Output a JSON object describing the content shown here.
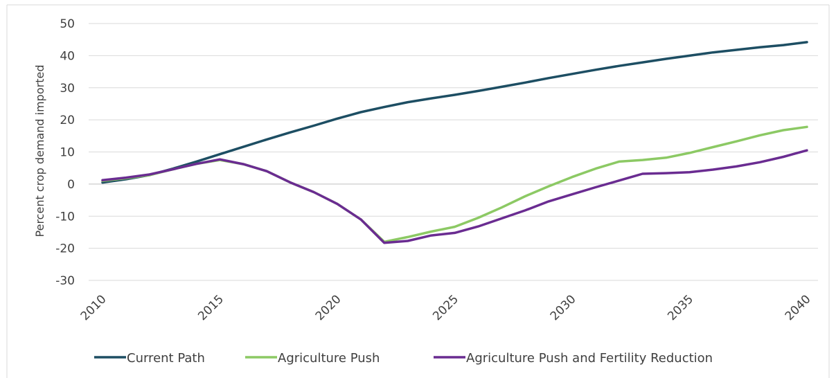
{
  "chart_data": {
    "type": "line",
    "title": "",
    "xlabel": "",
    "ylabel": "Percent crop demand imported",
    "xlim": [
      2010,
      2040
    ],
    "ylim": [
      -30,
      50
    ],
    "x_ticks": [
      "2010",
      "2015",
      "2020",
      "2025",
      "2030",
      "2035",
      "2040"
    ],
    "y_ticks": [
      "50",
      "40",
      "30",
      "20",
      "10",
      "0",
      "-10",
      "-20",
      "-30"
    ],
    "grid": true,
    "legend_position": "bottom",
    "x": [
      2010,
      2011,
      2012,
      2013,
      2014,
      2015,
      2016,
      2017,
      2018,
      2019,
      2020,
      2021,
      2022,
      2023,
      2024,
      2025,
      2026,
      2027,
      2028,
      2029,
      2030,
      2031,
      2032,
      2033,
      2034,
      2035,
      2036,
      2037,
      2038,
      2039,
      2040
    ],
    "series": [
      {
        "name": "Current Path",
        "color": "#1d4e63",
        "values": [
          0.5,
          1.5,
          2.8,
          4.8,
          7.0,
          9.3,
          11.6,
          13.9,
          16.1,
          18.2,
          20.4,
          22.4,
          24.0,
          25.5,
          26.7,
          27.8,
          29.0,
          30.3,
          31.6,
          33.0,
          34.3,
          35.6,
          36.8,
          37.9,
          39.0,
          40.0,
          41.0,
          41.8,
          42.6,
          43.3,
          44.2
        ]
      },
      {
        "name": "Agriculture Push",
        "color": "#8cc964",
        "values": [
          1.0,
          1.8,
          2.8,
          4.6,
          6.3,
          7.5,
          6.2,
          4.0,
          0.5,
          -2.5,
          -6.2,
          -11.0,
          -18.0,
          -16.5,
          -14.8,
          -13.3,
          -10.5,
          -7.3,
          -3.8,
          -0.7,
          2.2,
          4.8,
          7.0,
          7.5,
          8.2,
          9.7,
          11.5,
          13.3,
          15.2,
          16.8,
          17.8
        ]
      },
      {
        "name": "Agriculture Push and Fertility Reduction",
        "color": "#6a2c91",
        "values": [
          1.2,
          2.0,
          3.0,
          4.6,
          6.3,
          7.7,
          6.2,
          4.0,
          0.5,
          -2.5,
          -6.2,
          -11.0,
          -18.3,
          -17.7,
          -16.0,
          -15.2,
          -13.2,
          -10.7,
          -8.2,
          -5.4,
          -3.2,
          -1.0,
          1.1,
          3.2,
          3.4,
          3.7,
          4.5,
          5.5,
          6.8,
          8.5,
          10.5
        ]
      }
    ]
  }
}
